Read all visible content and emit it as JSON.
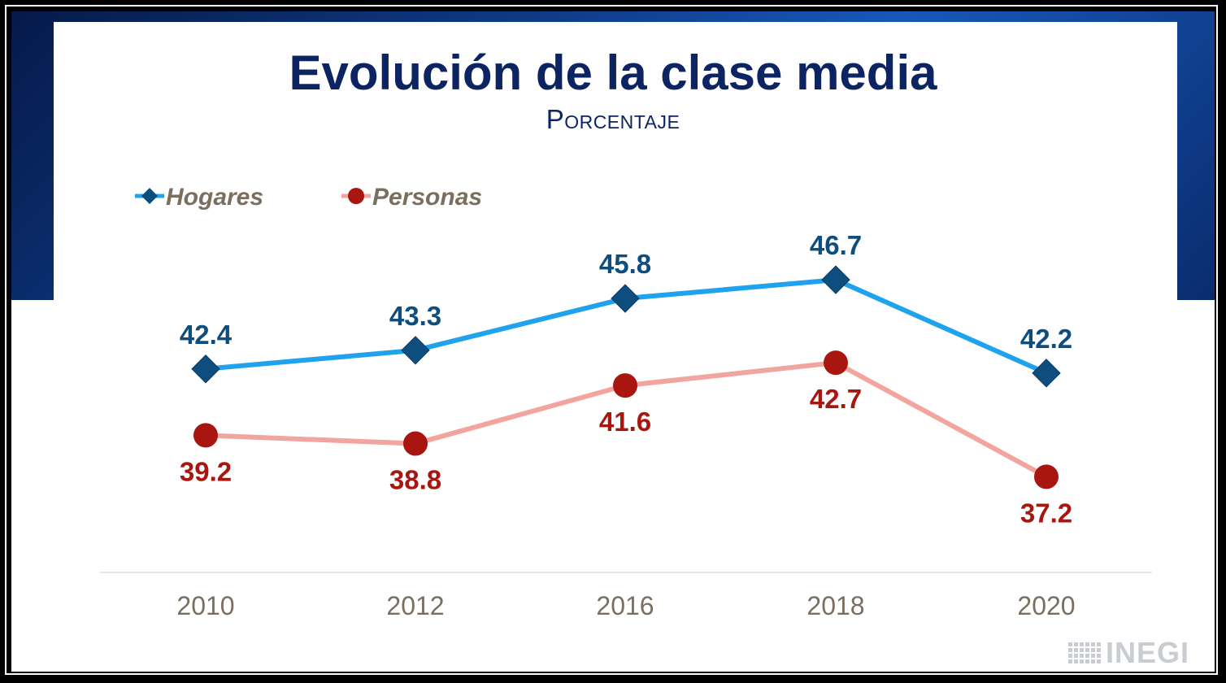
{
  "chart_data": {
    "type": "line",
    "title": "Evolución de la clase media",
    "subtitle": "Porcentaje",
    "categories": [
      "2010",
      "2012",
      "2016",
      "2018",
      "2020"
    ],
    "series": [
      {
        "name": "Hogares",
        "values": [
          42.4,
          43.3,
          45.8,
          46.7,
          42.2
        ],
        "color": "#1fa3ec",
        "marker": "diamond",
        "marker_color": "#0e4e7e",
        "label_color": "#0e4e7e",
        "label_position": "above"
      },
      {
        "name": "Personas",
        "values": [
          39.2,
          38.8,
          41.6,
          42.7,
          37.2
        ],
        "color": "#f2a59e",
        "marker": "circle",
        "marker_color": "#a8160f",
        "label_color": "#a8160f",
        "label_position": "below"
      }
    ],
    "xlabel": "",
    "ylabel": "",
    "ylim": [
      30,
      50
    ],
    "grid": false,
    "legend_position": "top-left"
  },
  "logo": {
    "text": "INEGI"
  }
}
